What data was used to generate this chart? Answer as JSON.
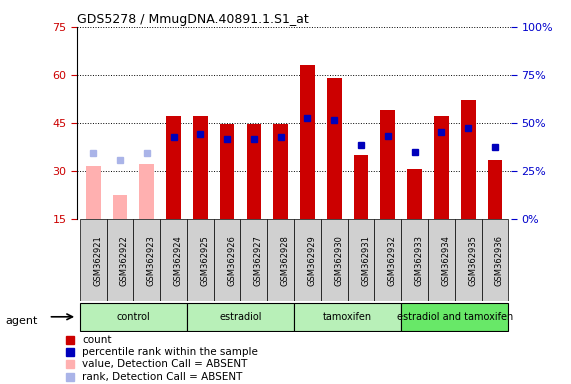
{
  "title": "GDS5278 / MmugDNA.40891.1.S1_at",
  "samples": [
    "GSM362921",
    "GSM362922",
    "GSM362923",
    "GSM362924",
    "GSM362925",
    "GSM362926",
    "GSM362927",
    "GSM362928",
    "GSM362929",
    "GSM362930",
    "GSM362931",
    "GSM362932",
    "GSM362933",
    "GSM362934",
    "GSM362935",
    "GSM362936"
  ],
  "count_values": [
    31.5,
    22.5,
    32.0,
    47.0,
    47.0,
    44.5,
    44.5,
    44.5,
    63.0,
    59.0,
    35.0,
    49.0,
    30.5,
    47.0,
    52.0,
    33.5
  ],
  "rank_values": [
    35.5,
    33.5,
    35.5,
    40.5,
    41.5,
    40.0,
    40.0,
    40.5,
    46.5,
    46.0,
    38.0,
    41.0,
    36.0,
    42.0,
    43.5,
    37.5
  ],
  "absent": [
    true,
    true,
    true,
    false,
    false,
    false,
    false,
    false,
    false,
    false,
    false,
    false,
    false,
    false,
    false,
    false
  ],
  "group_defs": [
    [
      0,
      3,
      "control",
      "#b8f0b8"
    ],
    [
      4,
      7,
      "estradiol",
      "#b8f0b8"
    ],
    [
      8,
      11,
      "tamoxifen",
      "#b8f0b8"
    ],
    [
      12,
      15,
      "estradiol and tamoxifen",
      "#68e868"
    ]
  ],
  "ylim_left": [
    15,
    75
  ],
  "ylim_right": [
    0,
    100
  ],
  "yticks_left": [
    15,
    30,
    45,
    60,
    75
  ],
  "yticks_right": [
    0,
    25,
    50,
    75,
    100
  ],
  "bar_color_present": "#cc0000",
  "bar_color_absent": "#ffb0b0",
  "dot_color_present": "#0000bb",
  "dot_color_absent": "#aab4e8",
  "bar_width": 0.55,
  "grid_color": "#000000",
  "axis_color_left": "#cc0000",
  "axis_color_right": "#0000cc",
  "tick_label_gray": "#c8c8c8",
  "legend_items": [
    [
      "#cc0000",
      "s",
      "count"
    ],
    [
      "#0000bb",
      "s",
      "percentile rank within the sample"
    ],
    [
      "#ffb0b0",
      "s",
      "value, Detection Call = ABSENT"
    ],
    [
      "#aab4e8",
      "s",
      "rank, Detection Call = ABSENT"
    ]
  ]
}
